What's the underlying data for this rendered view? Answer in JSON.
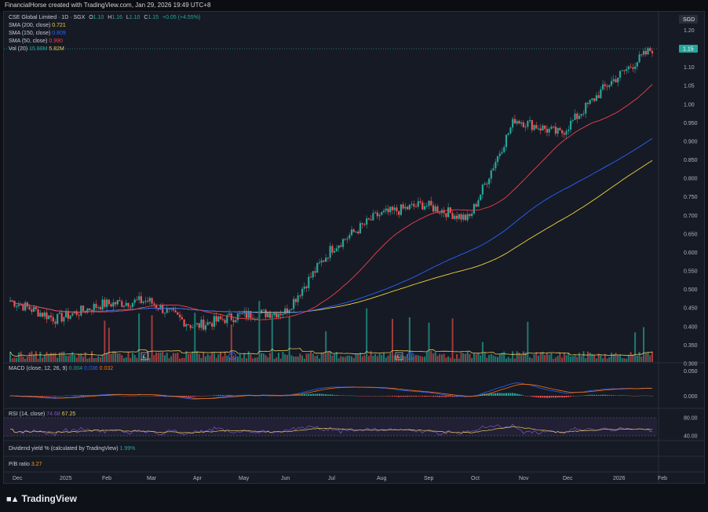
{
  "header": {
    "text": "FinancialHorse created with TradingView.com, Jan 29, 2026 19:49 UTC+8"
  },
  "main_legend": {
    "title": "CSE Global Limited · 1D · SGX",
    "o_label": "O",
    "o": "1.10",
    "h_label": "H",
    "h": "1.16",
    "l_label": "L",
    "l": "1.10",
    "c_label": "C",
    "c": "1.15",
    "change": "+0.05 (+4.55%)",
    "sma200_label": "SMA (200, close)",
    "sma200": "0.721",
    "sma150_label": "SMA (150, close)",
    "sma150": "0.809",
    "sma50_label": "SMA (50, close)",
    "sma50": "0.990",
    "vol_label": "Vol (20)",
    "vol1": "15.98M",
    "vol2": "5.82M"
  },
  "price_axis": {
    "currency": "SGD",
    "ticks": [
      "1.20",
      "1.15",
      "1.10",
      "1.05",
      "1.00",
      "0.950",
      "0.900",
      "0.850",
      "0.800",
      "0.750",
      "0.700",
      "0.650",
      "0.600",
      "0.550",
      "0.500",
      "0.450",
      "0.400",
      "0.350",
      "0.300"
    ],
    "last_price": "1.15"
  },
  "macd": {
    "label": "MACD (close, 12, 26, 9)",
    "v1": "0.004",
    "v2": "0.036",
    "v3": "0.032",
    "ticks": [
      "0.050",
      "0.000"
    ]
  },
  "rsi": {
    "label": "RSI (14, close)",
    "v1": "74.68",
    "v2": "67.25",
    "ticks": [
      "80.00",
      "40.00"
    ]
  },
  "dividend": {
    "label": "Dividend yield % (calculated by TradingView)",
    "value": "1.99%"
  },
  "pb": {
    "label": "P/B ratio",
    "value": "3.27"
  },
  "time_axis": [
    "Dec",
    "2025",
    "Feb",
    "Mar",
    "Apr",
    "May",
    "Jun",
    "Jul",
    "Aug",
    "Sep",
    "Oct",
    "Nov",
    "Dec",
    "2026",
    "Feb"
  ],
  "markers": [
    "E",
    "D",
    "E",
    "D"
  ],
  "brand": "TradingView",
  "colors": {
    "up": "#26a69a",
    "down": "#ef5350",
    "sma200": "#f2d33b",
    "sma150": "#2962ff",
    "sma50": "#ef3f4b",
    "vol_ma": "#e8c75b",
    "rsi": "#7e57c2",
    "macd": "#2962ff",
    "signal": "#ff6d00"
  },
  "chart_data": {
    "type": "line",
    "series": [
      {
        "name": "CSE Global Limited",
        "x": [
          "Dec",
          "2025",
          "Feb",
          "Mar",
          "Apr",
          "May",
          "Jun",
          "Jul",
          "Aug",
          "Sep",
          "Oct",
          "Nov",
          "Dec",
          "2026",
          "Feb"
        ],
        "values": [
          0.47,
          0.42,
          0.46,
          0.47,
          0.4,
          0.43,
          0.44,
          0.61,
          0.7,
          0.73,
          0.69,
          0.96,
          0.92,
          1.05,
          1.15
        ]
      }
    ],
    "ylim": [
      0.3,
      1.22
    ]
  }
}
